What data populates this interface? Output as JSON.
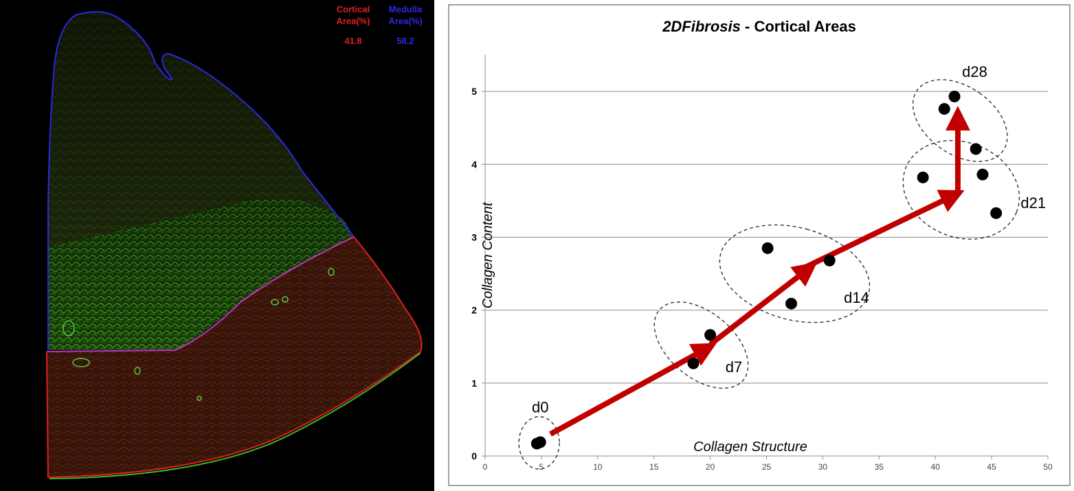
{
  "micrograph": {
    "cortical": {
      "label_line1": "Cortical",
      "label_line2": "Area(%)",
      "value": "41.8",
      "color": "#e02020"
    },
    "medulla": {
      "label_line1": "Medulla",
      "label_line2": "Area(%)",
      "value": "58.2",
      "color": "#2a2ae0"
    },
    "tissue_color": "#2a8a10",
    "background_color": "#000000"
  },
  "chart_data": {
    "type": "scatter",
    "title_italic": "2DFibrosis",
    "title_rest": " - Cortical Areas",
    "xlabel": "Collagen Structure",
    "ylabel": "Collagen Content",
    "xlim": [
      0,
      50
    ],
    "ylim": [
      0,
      5.5
    ],
    "xticks": [
      0,
      5,
      10,
      15,
      20,
      25,
      30,
      35,
      40,
      45,
      50
    ],
    "yticks": [
      0,
      1,
      2,
      3,
      4,
      5
    ],
    "grid": true,
    "point_color": "#000000",
    "arrow_color": "#c00000",
    "series": [
      {
        "name": "d0",
        "points": [
          [
            4.6,
            0.17
          ],
          [
            4.9,
            0.19
          ]
        ]
      },
      {
        "name": "d7",
        "points": [
          [
            18.5,
            1.27
          ],
          [
            20.0,
            1.66
          ]
        ]
      },
      {
        "name": "d14",
        "points": [
          [
            25.1,
            2.85
          ],
          [
            27.2,
            2.09
          ],
          [
            30.6,
            2.68
          ]
        ]
      },
      {
        "name": "d21",
        "points": [
          [
            38.9,
            3.82
          ],
          [
            44.2,
            3.86
          ],
          [
            45.4,
            3.33
          ]
        ]
      },
      {
        "name": "d28",
        "points": [
          [
            40.8,
            4.76
          ],
          [
            41.7,
            4.93
          ],
          [
            43.6,
            4.21
          ]
        ]
      }
    ],
    "arrows": [
      {
        "from": [
          5.8,
          0.3
        ],
        "to": [
          20.0,
          1.5
        ]
      },
      {
        "from": [
          20.0,
          1.53
        ],
        "to": [
          29.0,
          2.6
        ]
      },
      {
        "from": [
          28.6,
          2.6
        ],
        "to": [
          42.0,
          3.6
        ]
      },
      {
        "from": [
          42.0,
          3.6
        ],
        "to": [
          42.0,
          4.7
        ]
      }
    ],
    "cluster_ellipses": [
      {
        "center": [
          4.8,
          0.18
        ],
        "radii": [
          1.8,
          0.36
        ],
        "angle_deg": 0
      },
      {
        "center": [
          19.2,
          1.52
        ],
        "radii": [
          2.9,
          0.75
        ],
        "angle_deg": -50
      },
      {
        "center": [
          27.5,
          2.5
        ],
        "radii": [
          4.1,
          1.05
        ],
        "angle_deg": -75
      },
      {
        "center": [
          42.3,
          3.65
        ],
        "radii": [
          5.3,
          0.65
        ],
        "angle_deg": 22
      },
      {
        "center": [
          42.2,
          4.6
        ],
        "radii": [
          3.0,
          0.72
        ],
        "angle_deg": -55
      }
    ],
    "annotations": [
      {
        "text": "d0",
        "x": 4.9,
        "y": 0.6
      },
      {
        "text": "d7",
        "x": 22.1,
        "y": 1.15
      },
      {
        "text": "d14",
        "x": 33.0,
        "y": 2.1
      },
      {
        "text": "d21",
        "x": 48.7,
        "y": 3.4
      },
      {
        "text": "d28",
        "x": 43.5,
        "y": 5.2
      }
    ]
  }
}
